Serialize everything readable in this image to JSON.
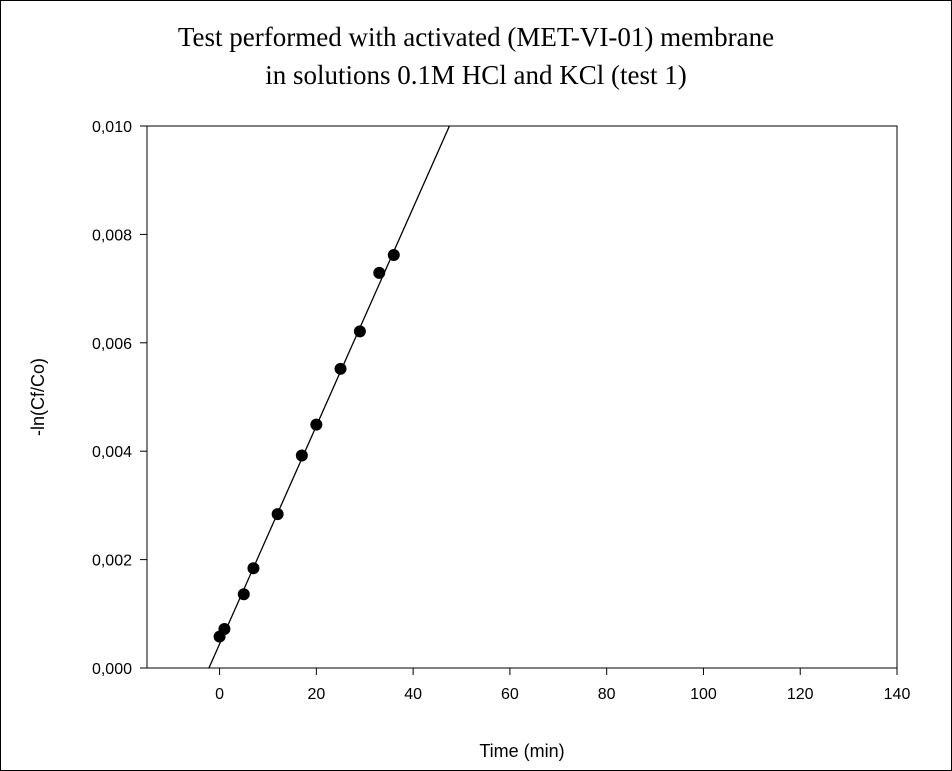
{
  "chart_data": {
    "type": "scatter",
    "title": "Test performed with activated (MET-VI-01) membrane",
    "subtitle": "in solutions 0.1M HCl and KCl (test 1)",
    "xlabel": "Time (min)",
    "ylabel": "-ln(Cf/Co)",
    "xlim": [
      -15,
      140
    ],
    "ylim": [
      0,
      0.01
    ],
    "x_ticks": [
      0,
      20,
      40,
      60,
      80,
      100,
      120,
      140
    ],
    "x_tick_labels": [
      "0",
      "20",
      "40",
      "60",
      "80",
      "100",
      "120",
      "140"
    ],
    "y_ticks": [
      0,
      0.002,
      0.004,
      0.006,
      0.008,
      0.01
    ],
    "y_tick_labels": [
      "0,000",
      "0,002",
      "0,004",
      "0,006",
      "0,008",
      "0,010"
    ],
    "grid": false,
    "legend": "none",
    "series": [
      {
        "x": [
          0,
          1,
          5,
          7,
          12,
          17,
          20,
          25,
          29,
          33,
          36
        ],
        "y": [
          0.00058,
          0.00072,
          0.00136,
          0.00184,
          0.00284,
          0.00392,
          0.00449,
          0.00552,
          0.00621,
          0.00729,
          0.00762
        ]
      }
    ],
    "fit_line": {
      "x": [
        -2.2,
        47.5
      ],
      "y": [
        0.0,
        0.01
      ]
    },
    "colors": {
      "marker": "#000000",
      "line": "#000000"
    }
  }
}
